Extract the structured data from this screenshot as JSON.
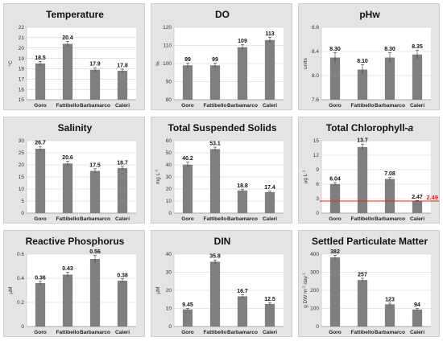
{
  "colors": {
    "bar": "#7f7f7f",
    "panel_bg": "#e4e4e4",
    "plot_bg": "#ffffff",
    "grid": "#d0d0d0",
    "reference_line": "#e02020"
  },
  "chart_data": [
    {
      "type": "bar",
      "title": "Temperature",
      "title_italic_suffix": "",
      "ylabel": "°C",
      "ylabel_sup": "",
      "categories": [
        "Goro",
        "Fattibello",
        "Barbamarco",
        "Caleri"
      ],
      "values": [
        18.5,
        20.4,
        17.9,
        17.8
      ],
      "value_labels": [
        "18.5",
        "20.4",
        "17.9",
        "17.8"
      ],
      "errors": [
        0.2,
        0.25,
        0.2,
        0.15
      ],
      "ylim": [
        15,
        22
      ],
      "yticks": [
        15,
        16,
        17,
        18,
        19,
        20,
        21,
        22
      ],
      "grid": true
    },
    {
      "type": "bar",
      "title": "DO",
      "title_italic_suffix": "",
      "ylabel": "%",
      "ylabel_sup": "",
      "categories": [
        "Goro",
        "Fattibello",
        "Barbamarco",
        "Caleri"
      ],
      "values": [
        99,
        99,
        109,
        113
      ],
      "value_labels": [
        "99",
        "99",
        "109",
        "113"
      ],
      "errors": [
        1.2,
        1.2,
        1.5,
        1.5
      ],
      "ylim": [
        80,
        120
      ],
      "yticks": [
        80,
        90,
        100,
        110,
        120
      ],
      "grid": true
    },
    {
      "type": "bar",
      "title": "pHw",
      "title_italic_suffix": "",
      "ylabel": "units",
      "ylabel_sup": "",
      "categories": [
        "Goro",
        "Fattibello",
        "Barbamarco",
        "Caleri"
      ],
      "values": [
        8.3,
        8.1,
        8.3,
        8.35
      ],
      "value_labels": [
        "8.30",
        "8.10",
        "8.30",
        "8.35"
      ],
      "errors": [
        0.08,
        0.08,
        0.08,
        0.07
      ],
      "ylim": [
        7.6,
        8.8
      ],
      "yticks": [
        7.6,
        8.0,
        8.4,
        8.8
      ],
      "ytick_labels": [
        "7.6",
        "8.0",
        "8.4",
        "8.8"
      ],
      "grid": true
    },
    {
      "type": "bar",
      "title": "Salinity",
      "title_italic_suffix": "",
      "ylabel": "",
      "ylabel_sup": "",
      "categories": [
        "Goro",
        "Fattibello",
        "Barbamarco",
        "Caleri"
      ],
      "values": [
        26.7,
        20.6,
        17.5,
        18.7
      ],
      "value_labels": [
        "26.7",
        "20.6",
        "17.5",
        "18.7"
      ],
      "errors": [
        0.9,
        0.9,
        0.9,
        0.7
      ],
      "ylim": [
        0,
        30
      ],
      "yticks": [
        0,
        5,
        10,
        15,
        20,
        25,
        30
      ],
      "grid": true
    },
    {
      "type": "bar",
      "title": "Total Suspended Solids",
      "title_italic_suffix": "",
      "ylabel": "mg L",
      "ylabel_sup": "-1",
      "categories": [
        "Goro",
        "Fattibello",
        "Barbamarco",
        "Caleri"
      ],
      "values": [
        40.2,
        53.1,
        18.8,
        17.4
      ],
      "value_labels": [
        "40.2",
        "53.1",
        "18.8",
        "17.4"
      ],
      "errors": [
        2.0,
        1.5,
        1.0,
        0.8
      ],
      "ylim": [
        0,
        60
      ],
      "yticks": [
        0,
        10,
        20,
        30,
        40,
        50,
        60
      ],
      "grid": true
    },
    {
      "type": "bar",
      "title": "Total Chlorophyll-",
      "title_italic_suffix": "a",
      "ylabel": "µg L",
      "ylabel_sup": "-1",
      "categories": [
        "Goro",
        "Fattibello",
        "Barbamarco",
        "Caleri"
      ],
      "values": [
        6.04,
        13.7,
        7.08,
        2.47
      ],
      "value_labels": [
        "6.04",
        "13.7",
        "7.08",
        "2.47"
      ],
      "errors": [
        0.3,
        0.6,
        0.3,
        0.15
      ],
      "ylim": [
        0,
        15
      ],
      "yticks": [
        0,
        3,
        6,
        9,
        12,
        15
      ],
      "grid": true,
      "reference_line": {
        "value": 2.49,
        "label": "2.49"
      }
    },
    {
      "type": "bar",
      "title": "Reactive Phosphorus",
      "title_italic_suffix": "",
      "ylabel": "µM",
      "ylabel_sup": "",
      "categories": [
        "Goro",
        "Fattibello",
        "Barbamarco",
        "Caleri"
      ],
      "values": [
        0.36,
        0.43,
        0.56,
        0.38
      ],
      "value_labels": [
        "0.36",
        "0.43",
        "0.56",
        "0.38"
      ],
      "errors": [
        0.015,
        0.02,
        0.03,
        0.015
      ],
      "ylim": [
        0,
        0.6
      ],
      "yticks": [
        0,
        0.2,
        0.4,
        0.6
      ],
      "ytick_labels": [
        "0",
        "0.2",
        "0.4",
        "0.6"
      ],
      "grid": true
    },
    {
      "type": "bar",
      "title": "DIN",
      "title_italic_suffix": "",
      "ylabel": "µM",
      "ylabel_sup": "",
      "categories": [
        "Goro",
        "Fattibello",
        "Barbamarco",
        "Caleri"
      ],
      "values": [
        9.45,
        35.8,
        16.7,
        12.5
      ],
      "value_labels": [
        "9.45",
        "35.8",
        "16.7",
        "12.5"
      ],
      "errors": [
        0.5,
        1.0,
        0.8,
        0.6
      ],
      "ylim": [
        0,
        40
      ],
      "yticks": [
        0,
        10,
        20,
        30,
        40
      ],
      "grid": true
    },
    {
      "type": "bar",
      "title": "Settled Particulate Matter",
      "title_italic_suffix": "",
      "ylabel": "g DW  m",
      "ylabel_sup": "-2",
      "ylabel_tail": " day",
      "ylabel_tail_sup": "-1",
      "categories": [
        "Goro",
        "Fattibello",
        "Barbamarco",
        "Caleri"
      ],
      "values": [
        382,
        257,
        123,
        94
      ],
      "value_labels": [
        "382",
        "257",
        "123",
        "94"
      ],
      "errors": [
        12,
        10,
        6,
        5
      ],
      "ylim": [
        0,
        400
      ],
      "yticks": [
        0,
        100,
        200,
        300,
        400
      ],
      "grid": true
    }
  ]
}
